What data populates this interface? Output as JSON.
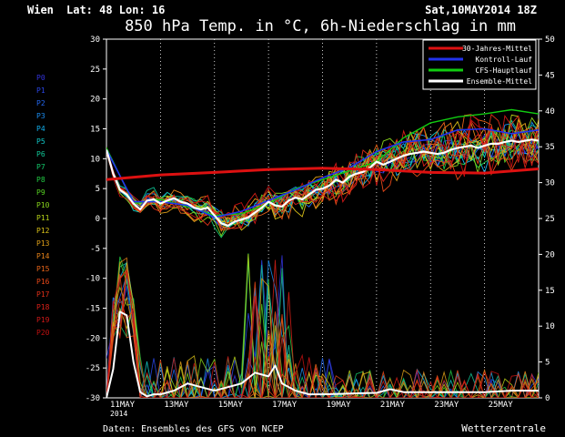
{
  "header": {
    "location": "Wien",
    "coords": "Lat: 48 Lon: 16",
    "date": "Sat,10MAY2014 18Z"
  },
  "footer": {
    "source": "Daten: Ensembles des GFS von NCEP",
    "brand": "Wetterzentrale"
  },
  "chart_data": {
    "type": "line",
    "title": "850 hPa Temp. in °C, 6h-Niederschlag in mm",
    "y_left": {
      "min": -30,
      "max": 30,
      "step": 5,
      "ticks": [
        "-30",
        "-25",
        "-20",
        "-15",
        "-10",
        "-5",
        "0",
        "5",
        "10",
        "15",
        "20",
        "25",
        "30"
      ]
    },
    "y_right": {
      "min": 0,
      "max": 50,
      "step": 5,
      "ticks": [
        "0",
        "5",
        "10",
        "15",
        "20",
        "25",
        "30",
        "35",
        "40",
        "45",
        "50"
      ]
    },
    "x_axis": {
      "start_hour": 0,
      "end_hour": 384,
      "ticks": [
        {
          "hour": 0,
          "label": "11MAY"
        },
        {
          "hour": 48,
          "label": "13MAY"
        },
        {
          "hour": 96,
          "label": "15MAY"
        },
        {
          "hour": 144,
          "label": "17MAY"
        },
        {
          "hour": 192,
          "label": "19MAY"
        },
        {
          "hour": 240,
          "label": "21MAY"
        },
        {
          "hour": 288,
          "label": "23MAY"
        },
        {
          "hour": 336,
          "label": "25MAY"
        }
      ],
      "year_label": "2014"
    },
    "legend": {
      "placement": "top-right",
      "entries": [
        {
          "name": "30-Jahres-Mittel",
          "color": "#dd1111"
        },
        {
          "name": "Kontroll-Lauf",
          "color": "#2233ee"
        },
        {
          "name": "CFS-Hauptlauf",
          "color": "#11cc11"
        },
        {
          "name": "Ensemble-Mittel",
          "color": "#ffffff"
        }
      ]
    },
    "members": [
      {
        "name": "P0",
        "color": "#3333dd"
      },
      {
        "name": "P1",
        "color": "#2a46e6"
      },
      {
        "name": "P2",
        "color": "#2266ee"
      },
      {
        "name": "P3",
        "color": "#1a8cf0"
      },
      {
        "name": "P4",
        "color": "#12b0ee"
      },
      {
        "name": "P5",
        "color": "#10c8c8"
      },
      {
        "name": "P6",
        "color": "#10c898"
      },
      {
        "name": "P7",
        "color": "#14c86a"
      },
      {
        "name": "P8",
        "color": "#22cc44"
      },
      {
        "name": "P9",
        "color": "#55d022"
      },
      {
        "name": "P10",
        "color": "#88d41c"
      },
      {
        "name": "P11",
        "color": "#b8d418"
      },
      {
        "name": "P12",
        "color": "#d8c018"
      },
      {
        "name": "P13",
        "color": "#e0a018"
      },
      {
        "name": "P14",
        "color": "#e68218"
      },
      {
        "name": "P15",
        "color": "#e86418"
      },
      {
        "name": "P16",
        "color": "#e84818"
      },
      {
        "name": "P17",
        "color": "#e23018"
      },
      {
        "name": "P18",
        "color": "#d82018"
      },
      {
        "name": "P19",
        "color": "#d01818"
      },
      {
        "name": "P20",
        "color": "#c01010"
      }
    ],
    "climate_mean": {
      "x": [
        0,
        48,
        96,
        144,
        192,
        240,
        288,
        336,
        384
      ],
      "y": [
        6.5,
        7.3,
        7.7,
        8.2,
        8.4,
        8.2,
        7.7,
        7.6,
        8.3
      ]
    },
    "ensemble_mean_temp": {
      "x": [
        0,
        6,
        12,
        18,
        24,
        30,
        36,
        42,
        48,
        54,
        60,
        66,
        72,
        78,
        84,
        90,
        96,
        102,
        108,
        114,
        120,
        126,
        132,
        138,
        144,
        150,
        156,
        162,
        168,
        174,
        180,
        186,
        192,
        198,
        204,
        210,
        216,
        222,
        228,
        234,
        240,
        246,
        252,
        258,
        264,
        270,
        276,
        282,
        288,
        294,
        300,
        306,
        312,
        318,
        324,
        330,
        336,
        342,
        348,
        354,
        360,
        366,
        372,
        378,
        384
      ],
      "y": [
        11.5,
        7.5,
        4.8,
        4.0,
        2.5,
        1.5,
        3.0,
        3.2,
        2.5,
        3.0,
        3.4,
        2.8,
        2.5,
        1.8,
        1.5,
        1.8,
        0.5,
        -0.8,
        -1.2,
        -0.5,
        -0.2,
        0.2,
        1.0,
        1.8,
        2.8,
        2.2,
        2.0,
        3.0,
        3.5,
        3.2,
        4.0,
        4.8,
        5.0,
        5.5,
        6.5,
        6.0,
        7.0,
        7.5,
        7.8,
        8.5,
        9.5,
        9.0,
        9.5,
        10.0,
        10.5,
        10.8,
        11.0,
        11.2,
        11.0,
        10.8,
        11.0,
        11.5,
        11.8,
        12.0,
        12.2,
        11.8,
        12.2,
        12.5,
        12.5,
        12.8,
        13.0,
        12.8,
        13.0,
        13.2,
        13.0
      ]
    },
    "control_temp": {
      "x": [
        0,
        24,
        48,
        72,
        96,
        120,
        144,
        168,
        192,
        216,
        240,
        264,
        288,
        312,
        336,
        360,
        384
      ],
      "y": [
        11.5,
        2.8,
        2.8,
        2.2,
        0.2,
        1.2,
        3.0,
        4.8,
        6.8,
        8.5,
        11.2,
        12.8,
        13.2,
        14.8,
        15.0,
        14.2,
        14.8
      ]
    },
    "cfs_temp": {
      "x": [
        0,
        24,
        48,
        72,
        96,
        120,
        144,
        168,
        192,
        216,
        240,
        264,
        288,
        312,
        336,
        360,
        384
      ],
      "y": [
        11.8,
        2.5,
        3.2,
        2.0,
        0.5,
        0.8,
        2.5,
        5.0,
        6.5,
        8.0,
        9.5,
        13.5,
        16.0,
        17.0,
        17.5,
        18.2,
        17.5
      ]
    },
    "ensemble_mean_precip": {
      "x": [
        0,
        6,
        12,
        18,
        24,
        30,
        36,
        42,
        48,
        60,
        72,
        84,
        96,
        108,
        120,
        132,
        144,
        150,
        156,
        168,
        180,
        192,
        216,
        240,
        252,
        264,
        288,
        312,
        336,
        360,
        384
      ],
      "y": [
        0.0,
        4.0,
        12.0,
        11.5,
        5.0,
        0.8,
        0.2,
        0.5,
        0.5,
        1.0,
        2.0,
        1.5,
        1.0,
        1.5,
        2.0,
        3.5,
        3.0,
        4.5,
        2.0,
        1.0,
        0.5,
        0.5,
        0.6,
        0.7,
        1.2,
        0.8,
        0.8,
        0.8,
        0.8,
        1.0,
        1.0
      ]
    }
  }
}
